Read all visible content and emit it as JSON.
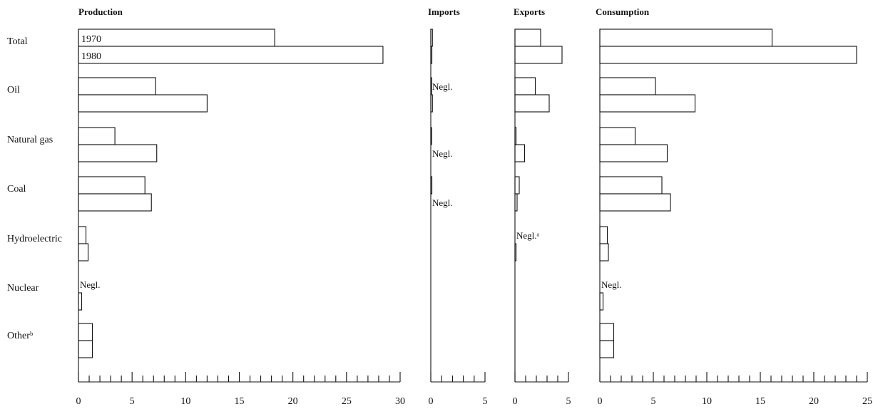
{
  "chart_data": {
    "type": "bar",
    "orientation": "horizontal",
    "categories": [
      "Total",
      "Oil",
      "Natural gas",
      "Coal",
      "Hydroelectric",
      "Nuclear",
      "Otherᵇ"
    ],
    "series_years": [
      "1970",
      "1980"
    ],
    "panels": [
      {
        "id": "production",
        "title": "Production",
        "xlim": [
          0,
          30
        ],
        "ticks": [
          0,
          5,
          10,
          15,
          20,
          25,
          30
        ],
        "values_1970": [
          18.3,
          7.2,
          3.4,
          6.2,
          0.7,
          0,
          1.3
        ],
        "values_1980": [
          28.4,
          12.0,
          7.3,
          6.8,
          0.9,
          0.3,
          1.3
        ],
        "notes": [
          {
            "category_index": 5,
            "year_index": 0,
            "text": "Negl."
          }
        ]
      },
      {
        "id": "imports",
        "title": "Imports",
        "xlim": [
          0,
          5
        ],
        "ticks": [
          0,
          5
        ],
        "values_1970": [
          0.15,
          0.05,
          0.05,
          0.1,
          0,
          0,
          0
        ],
        "values_1980": [
          0.1,
          0.15,
          0,
          0,
          0,
          0,
          0
        ],
        "notes": [
          {
            "category_index": 1,
            "year_index": 0,
            "text": "Negl."
          },
          {
            "category_index": 2,
            "year_index": 1,
            "text": "Negl."
          },
          {
            "category_index": 3,
            "year_index": 1,
            "text": "Negl."
          }
        ]
      },
      {
        "id": "exports",
        "title": "Exports",
        "xlim": [
          0,
          5
        ],
        "ticks": [
          0,
          5
        ],
        "values_1970": [
          2.4,
          1.9,
          0.1,
          0.4,
          0,
          0,
          0
        ],
        "values_1980": [
          4.4,
          3.2,
          0.9,
          0.2,
          0.1,
          0,
          0
        ],
        "notes": [
          {
            "category_index": 4,
            "year_index": 0,
            "text": "Negl.ᵃ"
          }
        ]
      },
      {
        "id": "consumption",
        "title": "Consumption",
        "xlim": [
          0,
          25
        ],
        "ticks": [
          0,
          5,
          10,
          15,
          20,
          25
        ],
        "values_1970": [
          16.1,
          5.2,
          3.3,
          5.8,
          0.7,
          0,
          1.3
        ],
        "values_1980": [
          24.0,
          8.9,
          6.3,
          6.6,
          0.8,
          0.3,
          1.3
        ],
        "notes": [
          {
            "category_index": 5,
            "year_index": 0,
            "text": "Negl."
          }
        ]
      }
    ],
    "grid": false,
    "legend": "inline-labels-in-total-bars"
  }
}
